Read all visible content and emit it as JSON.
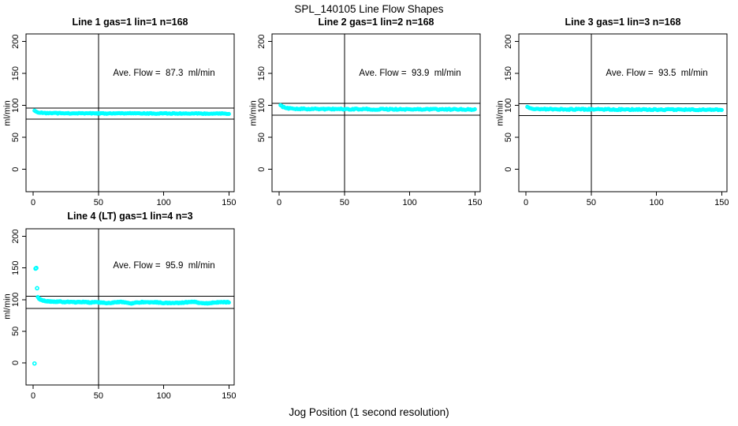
{
  "figure": {
    "title": "SPL_140105  Line Flow Shapes",
    "x_axis_label": "Jog Position (1 second resolution)"
  },
  "chart_data": {
    "type": "scatter",
    "title": "SPL_140105  Line Flow Shapes",
    "xlabel": "Jog Position (1 second resolution)",
    "ylabel": "ml/min",
    "marker": "open-circle",
    "point_color": "#00FFFF",
    "line_color": "#000000",
    "grid": false,
    "x_ticks": [
      0,
      50,
      100,
      150
    ],
    "y_ticks": [
      0,
      50,
      100,
      150,
      200
    ],
    "xlim": [
      -5.5,
      154
    ],
    "ylim": [
      -35,
      212
    ],
    "vline_x": 50,
    "panels": [
      {
        "title": "Line 1 gas=1 lin=1 n=168",
        "annotation": "Ave. Flow =  87.3  ml/min",
        "avg_flow_ml_min": 87.3,
        "n": 168,
        "ref_line_upper": 96.0,
        "ref_line_lower": 78.6,
        "band": [
          [
            1,
            91.5
          ],
          [
            2,
            90.1
          ],
          [
            4,
            89.0
          ],
          [
            7,
            88.3
          ],
          [
            12,
            87.9
          ],
          [
            25,
            87.7
          ],
          [
            60,
            87.5
          ],
          [
            100,
            87.4
          ],
          [
            150,
            87.2
          ]
        ],
        "outliers": [],
        "jitter": 0.6,
        "points_rendered": 168,
        "seed": 11
      },
      {
        "title": "Line 2 gas=1 lin=2 n=168",
        "annotation": "Ave. Flow =  93.9  ml/min",
        "avg_flow_ml_min": 93.9,
        "n": 168,
        "ref_line_upper": 103.3,
        "ref_line_lower": 84.5,
        "band": [
          [
            1,
            100.2
          ],
          [
            2,
            98.5
          ],
          [
            3,
            97.3
          ],
          [
            5,
            96.0
          ],
          [
            8,
            95.2
          ],
          [
            14,
            94.7
          ],
          [
            30,
            94.4
          ],
          [
            70,
            94.1
          ],
          [
            110,
            93.9
          ],
          [
            150,
            93.6
          ]
        ],
        "outliers": [],
        "jitter": 0.9,
        "points_rendered": 168,
        "seed": 22
      },
      {
        "title": "Line 3 gas=1 lin=3 n=168",
        "annotation": "Ave. Flow =  93.5  ml/min",
        "avg_flow_ml_min": 93.5,
        "n": 168,
        "ref_line_upper": 102.9,
        "ref_line_lower": 84.2,
        "band": [
          [
            1,
            97.5
          ],
          [
            2,
            96.5
          ],
          [
            4,
            95.3
          ],
          [
            7,
            94.7
          ],
          [
            12,
            94.3
          ],
          [
            30,
            94.0
          ],
          [
            70,
            93.7
          ],
          [
            110,
            93.5
          ],
          [
            150,
            93.3
          ]
        ],
        "outliers": [],
        "jitter": 0.9,
        "points_rendered": 168,
        "seed": 33
      },
      {
        "title": "Line 4 (LT) gas=1 lin=4 n=3",
        "annotation": "Ave. Flow =  95.9  ml/min",
        "avg_flow_ml_min": 95.9,
        "n": 3,
        "ref_line_upper": 105.5,
        "ref_line_lower": 86.3,
        "band": [
          [
            3.5,
            104.0
          ],
          [
            4.5,
            101.5
          ],
          [
            6,
            99.5
          ],
          [
            8,
            98.3
          ],
          [
            11,
            97.3
          ],
          [
            15,
            96.6
          ],
          [
            20,
            96.9
          ],
          [
            24,
            96.0
          ],
          [
            28,
            96.6
          ],
          [
            33,
            95.7
          ],
          [
            38,
            96.4
          ],
          [
            43,
            95.4
          ],
          [
            48,
            96.0
          ],
          [
            53,
            95.2
          ],
          [
            57,
            94.6
          ],
          [
            61,
            95.3
          ],
          [
            65,
            96.1
          ],
          [
            69,
            96.3
          ],
          [
            72,
            94.8
          ],
          [
            75,
            93.8
          ],
          [
            79,
            95.3
          ],
          [
            84,
            96.1
          ],
          [
            89,
            95.6
          ],
          [
            94,
            95.9
          ],
          [
            99,
            94.9
          ],
          [
            104,
            94.5
          ],
          [
            109,
            94.7
          ],
          [
            114,
            95.1
          ],
          [
            119,
            96.0
          ],
          [
            124,
            96.2
          ],
          [
            128,
            94.6
          ],
          [
            133,
            94.3
          ],
          [
            137,
            94.9
          ],
          [
            141,
            95.5
          ],
          [
            146,
            95.8
          ],
          [
            150,
            96.0
          ]
        ],
        "outliers": [
          [
            1,
            -1
          ],
          [
            1.8,
            149
          ],
          [
            2.4,
            150
          ],
          [
            3,
            118
          ]
        ],
        "jitter": 0.7,
        "points_rendered": 300,
        "seed": 44
      }
    ]
  }
}
